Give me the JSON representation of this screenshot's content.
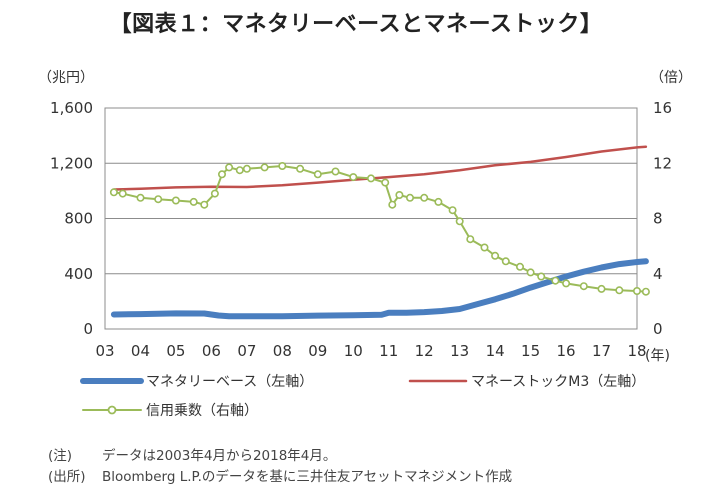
{
  "title": "【図表１：マネタリーベースとマネーストック】",
  "notes": [
    {
      "label": "(注)",
      "text": "データは2003年4月から2018年4月。"
    },
    {
      "label": "(出所)",
      "text": "Bloomberg L.P.のデータを基に三井住友アセットマネジメント作成"
    }
  ],
  "colors": {
    "monetary_base": "#4a7ebf",
    "money_stock": "#c0504d",
    "multiplier": "#9bbb59"
  },
  "chart_data": {
    "type": "line",
    "left_axis": {
      "unit": "（兆円）",
      "ylim": [
        0,
        1600
      ],
      "ticks": [
        0,
        400,
        800,
        1200,
        1600
      ],
      "tick_labels": [
        "0",
        "400",
        "800",
        "1,200",
        "1,600"
      ]
    },
    "right_axis": {
      "unit": "（倍）",
      "ylim": [
        0,
        16
      ],
      "ticks": [
        0,
        4,
        8,
        12,
        16
      ],
      "tick_labels": [
        "0",
        "4",
        "8",
        "12",
        "16"
      ]
    },
    "x_axis": {
      "unit": "(年)",
      "xlim": [
        2003.0,
        2018.0
      ],
      "ticks": [
        2003,
        2004,
        2005,
        2006,
        2007,
        2008,
        2009,
        2010,
        2011,
        2012,
        2013,
        2014,
        2015,
        2016,
        2017,
        2018
      ],
      "tick_labels": [
        "03",
        "04",
        "05",
        "06",
        "07",
        "08",
        "09",
        "10",
        "11",
        "12",
        "13",
        "14",
        "15",
        "16",
        "17",
        "18"
      ]
    },
    "grid": true,
    "legend": "bottom",
    "series": [
      {
        "name": "マネタリーベース（左軸）",
        "axis": "left",
        "style": "thick-line",
        "points": [
          [
            2003.25,
            105
          ],
          [
            2004,
            108
          ],
          [
            2005,
            113
          ],
          [
            2005.8,
            112
          ],
          [
            2006.2,
            98
          ],
          [
            2006.5,
            92
          ],
          [
            2007,
            93
          ],
          [
            2008,
            92
          ],
          [
            2009,
            97
          ],
          [
            2010,
            99
          ],
          [
            2010.8,
            103
          ],
          [
            2011,
            118
          ],
          [
            2011.5,
            118
          ],
          [
            2012,
            122
          ],
          [
            2012.5,
            130
          ],
          [
            2013,
            145
          ],
          [
            2013.5,
            180
          ],
          [
            2014,
            215
          ],
          [
            2014.5,
            255
          ],
          [
            2015,
            300
          ],
          [
            2015.5,
            340
          ],
          [
            2016,
            380
          ],
          [
            2016.5,
            415
          ],
          [
            2017,
            445
          ],
          [
            2017.5,
            470
          ],
          [
            2018,
            485
          ],
          [
            2018.25,
            490
          ]
        ]
      },
      {
        "name": "マネーストックM3（左軸）",
        "axis": "left",
        "style": "line",
        "points": [
          [
            2003.25,
            1010
          ],
          [
            2004,
            1015
          ],
          [
            2005,
            1025
          ],
          [
            2006,
            1030
          ],
          [
            2007,
            1028
          ],
          [
            2008,
            1040
          ],
          [
            2009,
            1060
          ],
          [
            2010,
            1080
          ],
          [
            2011,
            1100
          ],
          [
            2012,
            1120
          ],
          [
            2013,
            1150
          ],
          [
            2014,
            1185
          ],
          [
            2015,
            1210
          ],
          [
            2016,
            1245
          ],
          [
            2017,
            1285
          ],
          [
            2018,
            1315
          ],
          [
            2018.25,
            1320
          ]
        ]
      },
      {
        "name": "信用乗数（右軸）",
        "axis": "right",
        "style": "line-markers",
        "points": [
          [
            2003.25,
            9.9
          ],
          [
            2003.5,
            9.8
          ],
          [
            2004,
            9.5
          ],
          [
            2004.5,
            9.4
          ],
          [
            2005,
            9.3
          ],
          [
            2005.5,
            9.2
          ],
          [
            2005.8,
            9.0
          ],
          [
            2006.1,
            9.8
          ],
          [
            2006.3,
            11.2
          ],
          [
            2006.5,
            11.7
          ],
          [
            2006.8,
            11.5
          ],
          [
            2007,
            11.6
          ],
          [
            2007.5,
            11.7
          ],
          [
            2008,
            11.8
          ],
          [
            2008.5,
            11.6
          ],
          [
            2009,
            11.2
          ],
          [
            2009.5,
            11.4
          ],
          [
            2010,
            11.0
          ],
          [
            2010.5,
            10.9
          ],
          [
            2010.9,
            10.6
          ],
          [
            2011.1,
            9.0
          ],
          [
            2011.3,
            9.7
          ],
          [
            2011.6,
            9.5
          ],
          [
            2012,
            9.5
          ],
          [
            2012.4,
            9.2
          ],
          [
            2012.8,
            8.6
          ],
          [
            2013,
            7.8
          ],
          [
            2013.3,
            6.5
          ],
          [
            2013.7,
            5.9
          ],
          [
            2014,
            5.3
          ],
          [
            2014.3,
            4.9
          ],
          [
            2014.7,
            4.5
          ],
          [
            2015,
            4.1
          ],
          [
            2015.3,
            3.8
          ],
          [
            2015.7,
            3.5
          ],
          [
            2016,
            3.3
          ],
          [
            2016.5,
            3.1
          ],
          [
            2017,
            2.9
          ],
          [
            2017.5,
            2.8
          ],
          [
            2018,
            2.75
          ],
          [
            2018.25,
            2.7
          ]
        ]
      }
    ]
  }
}
